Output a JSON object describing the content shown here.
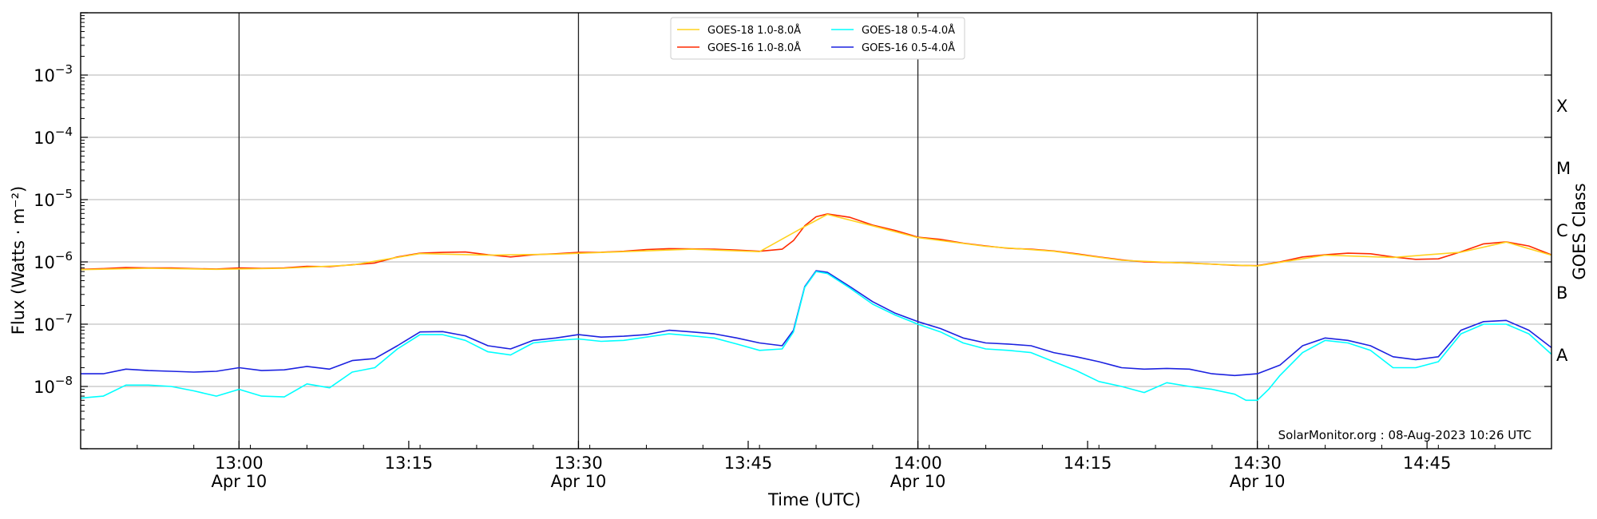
{
  "chart_data": {
    "type": "line",
    "y_scale": "log",
    "ylim": [
      1e-09,
      0.01
    ],
    "ylabel": "Flux (Watts · m⁻²)",
    "y_ticks": [
      {
        "value": 1e-08,
        "mant": "10",
        "exp": "−8"
      },
      {
        "value": 1e-07,
        "mant": "10",
        "exp": "−7"
      },
      {
        "value": 1e-06,
        "mant": "10",
        "exp": "−6"
      },
      {
        "value": 1e-05,
        "mant": "10",
        "exp": "−5"
      },
      {
        "value": 0.0001,
        "mant": "10",
        "exp": "−4"
      },
      {
        "value": 0.001,
        "mant": "10",
        "exp": "−3"
      }
    ],
    "xlabel": "Time (UTC)",
    "xlim": [
      "12:46",
      "14:56"
    ],
    "x_ticks": [
      {
        "time": "13:00",
        "line1": "13:00",
        "line2": "Apr 10"
      },
      {
        "time": "13:15",
        "line1": "13:15",
        "line2": ""
      },
      {
        "time": "13:30",
        "line1": "13:30",
        "line2": "Apr 10"
      },
      {
        "time": "13:45",
        "line1": "13:45",
        "line2": ""
      },
      {
        "time": "14:00",
        "line1": "14:00",
        "line2": "Apr 10"
      },
      {
        "time": "14:15",
        "line1": "14:15",
        "line2": ""
      },
      {
        "time": "14:30",
        "line1": "14:30",
        "line2": "Apr 10"
      },
      {
        "time": "14:45",
        "line1": "14:45",
        "line2": ""
      }
    ],
    "right_axis_label": "GOES Class",
    "goes_classes": [
      {
        "label": "A",
        "flux": 1e-08
      },
      {
        "label": "B",
        "flux": 1e-07
      },
      {
        "label": "C",
        "flux": 1e-06
      },
      {
        "label": "M",
        "flux": 1e-05
      },
      {
        "label": "X",
        "flux": 0.0001
      }
    ],
    "grid": "horizontal at each decade",
    "vertical_markers": [
      "13:00",
      "13:30",
      "14:00",
      "14:30"
    ],
    "legend_position": "upper-center",
    "legend": [
      {
        "label": "GOES-18 1.0-8.0Å",
        "color": "#ffd21f"
      },
      {
        "label": "GOES-18 0.5-4.0Å",
        "color": "#00ffff"
      },
      {
        "label": "GOES-16 1.0-8.0Å",
        "color": "#ff2a00"
      },
      {
        "label": "GOES-16 0.5-4.0Å",
        "color": "#1c22e0"
      }
    ],
    "series": [
      {
        "name": "GOES-16 1.0-8.0Å",
        "color": "#ff2a00",
        "points": [
          [
            "12:46",
            7.6e-07
          ],
          [
            "12:48",
            7.8e-07
          ],
          [
            "12:50",
            8.1e-07
          ],
          [
            "12:52",
            8e-07
          ],
          [
            "12:54",
            8e-07
          ],
          [
            "12:56",
            7.8e-07
          ],
          [
            "12:58",
            7.7e-07
          ],
          [
            "13:00",
            8e-07
          ],
          [
            "13:02",
            7.9e-07
          ],
          [
            "13:04",
            8e-07
          ],
          [
            "13:06",
            8.5e-07
          ],
          [
            "13:08",
            8.4e-07
          ],
          [
            "13:10",
            9e-07
          ],
          [
            "13:12",
            9.6e-07
          ],
          [
            "13:14",
            1.2e-06
          ],
          [
            "13:16",
            1.38e-06
          ],
          [
            "13:18",
            1.42e-06
          ],
          [
            "13:20",
            1.44e-06
          ],
          [
            "13:22",
            1.3e-06
          ],
          [
            "13:24",
            1.2e-06
          ],
          [
            "13:26",
            1.3e-06
          ],
          [
            "13:28",
            1.35e-06
          ],
          [
            "13:30",
            1.42e-06
          ],
          [
            "13:32",
            1.43e-06
          ],
          [
            "13:34",
            1.48e-06
          ],
          [
            "13:36",
            1.58e-06
          ],
          [
            "13:38",
            1.63e-06
          ],
          [
            "13:40",
            1.62e-06
          ],
          [
            "13:42",
            1.6e-06
          ],
          [
            "13:44",
            1.55e-06
          ],
          [
            "13:46",
            1.48e-06
          ],
          [
            "13:48",
            1.6e-06
          ],
          [
            "13:49",
            2.2e-06
          ],
          [
            "13:50",
            3.8e-06
          ],
          [
            "13:51",
            5.3e-06
          ],
          [
            "13:52",
            5.9e-06
          ],
          [
            "13:54",
            5.2e-06
          ],
          [
            "13:56",
            3.9e-06
          ],
          [
            "13:58",
            3.2e-06
          ],
          [
            "14:00",
            2.5e-06
          ],
          [
            "14:02",
            2.3e-06
          ],
          [
            "14:04",
            2e-06
          ],
          [
            "14:06",
            1.8e-06
          ],
          [
            "14:08",
            1.65e-06
          ],
          [
            "14:10",
            1.6e-06
          ],
          [
            "14:12",
            1.5e-06
          ],
          [
            "14:14",
            1.35e-06
          ],
          [
            "14:16",
            1.2e-06
          ],
          [
            "14:18",
            1.08e-06
          ],
          [
            "14:20",
            1e-06
          ],
          [
            "14:22",
            9.8e-07
          ],
          [
            "14:24",
            9.6e-07
          ],
          [
            "14:26",
            9.2e-07
          ],
          [
            "14:28",
            8.8e-07
          ],
          [
            "14:30",
            8.7e-07
          ],
          [
            "14:32",
            1e-06
          ],
          [
            "14:34",
            1.2e-06
          ],
          [
            "14:36",
            1.3e-06
          ],
          [
            "14:38",
            1.38e-06
          ],
          [
            "14:40",
            1.35e-06
          ],
          [
            "14:42",
            1.2e-06
          ],
          [
            "14:44",
            1.1e-06
          ],
          [
            "14:46",
            1.12e-06
          ],
          [
            "14:48",
            1.45e-06
          ],
          [
            "14:50",
            1.95e-06
          ],
          [
            "14:52",
            2.1e-06
          ],
          [
            "14:54",
            1.8e-06
          ],
          [
            "14:56",
            1.3e-06
          ]
        ]
      },
      {
        "name": "GOES-18 1.0-8.0Å",
        "color": "#ffd21f",
        "points": [
          [
            "12:46",
            7.5e-07
          ],
          [
            "12:52",
            7.9e-07
          ],
          [
            "12:58",
            7.6e-07
          ],
          [
            "13:04",
            7.9e-07
          ],
          [
            "13:10",
            8.9e-07
          ],
          [
            "13:16",
            1.36e-06
          ],
          [
            "13:22",
            1.28e-06
          ],
          [
            "13:28",
            1.33e-06
          ],
          [
            "13:34",
            1.46e-06
          ],
          [
            "13:40",
            1.6e-06
          ],
          [
            "13:46",
            1.46e-06
          ],
          [
            "13:50",
            3.7e-06
          ],
          [
            "13:52",
            5.8e-06
          ],
          [
            "13:56",
            3.8e-06
          ],
          [
            "14:00",
            2.45e-06
          ],
          [
            "14:06",
            1.78e-06
          ],
          [
            "14:12",
            1.48e-06
          ],
          [
            "14:18",
            1.06e-06
          ],
          [
            "14:24",
            9.5e-07
          ],
          [
            "14:30",
            8.6e-07
          ],
          [
            "14:36",
            1.28e-06
          ],
          [
            "14:42",
            1.18e-06
          ],
          [
            "14:48",
            1.43e-06
          ],
          [
            "14:52",
            2.08e-06
          ],
          [
            "14:56",
            1.28e-06
          ]
        ]
      },
      {
        "name": "GOES-16 0.5-4.0Å",
        "color": "#1c22e0",
        "points": [
          [
            "12:46",
            1.6e-08
          ],
          [
            "12:48",
            1.6e-08
          ],
          [
            "12:50",
            1.9e-08
          ],
          [
            "12:52",
            1.8e-08
          ],
          [
            "12:54",
            1.75e-08
          ],
          [
            "12:56",
            1.7e-08
          ],
          [
            "12:58",
            1.75e-08
          ],
          [
            "13:00",
            2e-08
          ],
          [
            "13:02",
            1.8e-08
          ],
          [
            "13:04",
            1.85e-08
          ],
          [
            "13:06",
            2.1e-08
          ],
          [
            "13:08",
            1.9e-08
          ],
          [
            "13:10",
            2.6e-08
          ],
          [
            "13:12",
            2.8e-08
          ],
          [
            "13:14",
            4.5e-08
          ],
          [
            "13:16",
            7.5e-08
          ],
          [
            "13:18",
            7.6e-08
          ],
          [
            "13:20",
            6.5e-08
          ],
          [
            "13:22",
            4.5e-08
          ],
          [
            "13:24",
            4e-08
          ],
          [
            "13:26",
            5.5e-08
          ],
          [
            "13:28",
            6e-08
          ],
          [
            "13:30",
            6.8e-08
          ],
          [
            "13:32",
            6.2e-08
          ],
          [
            "13:34",
            6.4e-08
          ],
          [
            "13:36",
            6.8e-08
          ],
          [
            "13:38",
            8e-08
          ],
          [
            "13:40",
            7.5e-08
          ],
          [
            "13:42",
            7e-08
          ],
          [
            "13:44",
            6e-08
          ],
          [
            "13:46",
            5e-08
          ],
          [
            "13:48",
            4.5e-08
          ],
          [
            "13:49",
            8e-08
          ],
          [
            "13:50",
            4e-07
          ],
          [
            "13:51",
            7.2e-07
          ],
          [
            "13:52",
            6.8e-07
          ],
          [
            "13:54",
            4e-07
          ],
          [
            "13:56",
            2.3e-07
          ],
          [
            "13:58",
            1.5e-07
          ],
          [
            "14:00",
            1.1e-07
          ],
          [
            "14:02",
            8.5e-08
          ],
          [
            "14:04",
            6e-08
          ],
          [
            "14:06",
            5e-08
          ],
          [
            "14:08",
            4.8e-08
          ],
          [
            "14:10",
            4.5e-08
          ],
          [
            "14:12",
            3.5e-08
          ],
          [
            "14:14",
            3e-08
          ],
          [
            "14:16",
            2.5e-08
          ],
          [
            "14:18",
            2e-08
          ],
          [
            "14:20",
            1.9e-08
          ],
          [
            "14:22",
            1.95e-08
          ],
          [
            "14:24",
            1.9e-08
          ],
          [
            "14:26",
            1.6e-08
          ],
          [
            "14:28",
            1.5e-08
          ],
          [
            "14:30",
            1.6e-08
          ],
          [
            "14:32",
            2.2e-08
          ],
          [
            "14:34",
            4.5e-08
          ],
          [
            "14:36",
            6e-08
          ],
          [
            "14:38",
            5.5e-08
          ],
          [
            "14:40",
            4.5e-08
          ],
          [
            "14:42",
            3e-08
          ],
          [
            "14:44",
            2.7e-08
          ],
          [
            "14:46",
            3e-08
          ],
          [
            "14:48",
            8e-08
          ],
          [
            "14:50",
            1.1e-07
          ],
          [
            "14:52",
            1.15e-07
          ],
          [
            "14:54",
            8e-08
          ],
          [
            "14:56",
            4.2e-08
          ]
        ]
      },
      {
        "name": "GOES-18 0.5-4.0Å",
        "color": "#00ffff",
        "points": [
          [
            "12:46",
            6.5e-09
          ],
          [
            "12:48",
            7e-09
          ],
          [
            "12:50",
            1.05e-08
          ],
          [
            "12:52",
            1.05e-08
          ],
          [
            "12:54",
            1e-08
          ],
          [
            "12:56",
            8.5e-09
          ],
          [
            "12:58",
            7e-09
          ],
          [
            "13:00",
            9e-09
          ],
          [
            "13:02",
            7e-09
          ],
          [
            "13:04",
            6.8e-09
          ],
          [
            "13:06",
            1.1e-08
          ],
          [
            "13:08",
            9.5e-09
          ],
          [
            "13:10",
            1.7e-08
          ],
          [
            "13:12",
            2e-08
          ],
          [
            "13:14",
            4e-08
          ],
          [
            "13:16",
            6.8e-08
          ],
          [
            "13:18",
            6.8e-08
          ],
          [
            "13:20",
            5.5e-08
          ],
          [
            "13:22",
            3.6e-08
          ],
          [
            "13:24",
            3.2e-08
          ],
          [
            "13:26",
            5e-08
          ],
          [
            "13:28",
            5.5e-08
          ],
          [
            "13:30",
            5.8e-08
          ],
          [
            "13:32",
            5.3e-08
          ],
          [
            "13:34",
            5.5e-08
          ],
          [
            "13:36",
            6.2e-08
          ],
          [
            "13:38",
            7e-08
          ],
          [
            "13:40",
            6.5e-08
          ],
          [
            "13:42",
            6e-08
          ],
          [
            "13:44",
            4.8e-08
          ],
          [
            "13:46",
            3.8e-08
          ],
          [
            "13:48",
            4e-08
          ],
          [
            "13:49",
            7.5e-08
          ],
          [
            "13:50",
            3.9e-07
          ],
          [
            "13:51",
            7e-07
          ],
          [
            "13:52",
            6.5e-07
          ],
          [
            "13:54",
            3.8e-07
          ],
          [
            "13:56",
            2.1e-07
          ],
          [
            "13:58",
            1.4e-07
          ],
          [
            "14:00",
            1e-07
          ],
          [
            "14:02",
            7.5e-08
          ],
          [
            "14:04",
            5e-08
          ],
          [
            "14:06",
            4e-08
          ],
          [
            "14:08",
            3.8e-08
          ],
          [
            "14:10",
            3.5e-08
          ],
          [
            "14:12",
            2.5e-08
          ],
          [
            "14:14",
            1.8e-08
          ],
          [
            "14:16",
            1.2e-08
          ],
          [
            "14:18",
            1e-08
          ],
          [
            "14:20",
            8e-09
          ],
          [
            "14:22",
            1.15e-08
          ],
          [
            "14:24",
            1e-08
          ],
          [
            "14:26",
            9e-09
          ],
          [
            "14:28",
            7.5e-09
          ],
          [
            "14:29",
            6e-09
          ],
          [
            "14:30",
            6e-09
          ],
          [
            "14:31",
            9e-09
          ],
          [
            "14:32",
            1.5e-08
          ],
          [
            "14:34",
            3.5e-08
          ],
          [
            "14:36",
            5.5e-08
          ],
          [
            "14:38",
            5e-08
          ],
          [
            "14:40",
            3.8e-08
          ],
          [
            "14:42",
            2e-08
          ],
          [
            "14:44",
            2e-08
          ],
          [
            "14:46",
            2.5e-08
          ],
          [
            "14:48",
            7e-08
          ],
          [
            "14:50",
            1e-07
          ],
          [
            "14:52",
            1e-07
          ],
          [
            "14:54",
            7e-08
          ],
          [
            "14:56",
            3.3e-08
          ]
        ]
      }
    ],
    "annotation": "SolarMonitor.org : 08-Aug-2023 10:26 UTC"
  }
}
